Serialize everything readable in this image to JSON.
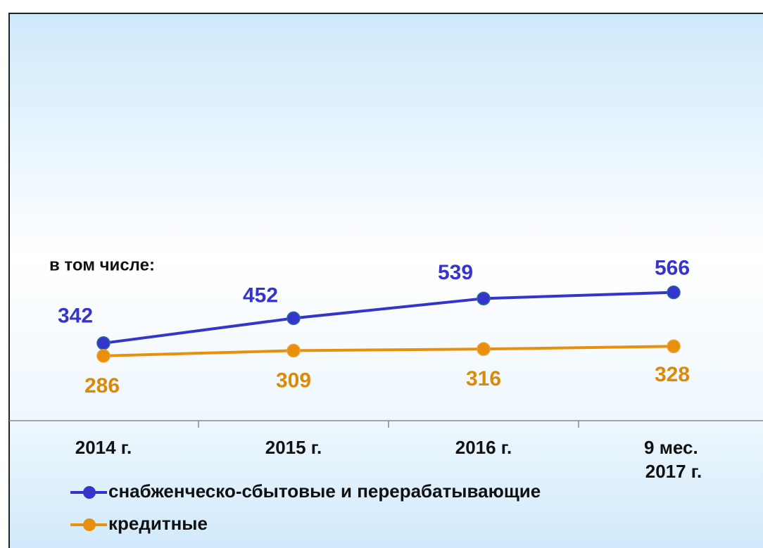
{
  "chart_data": {
    "type": "line",
    "annotations": [
      "в том числе:"
    ],
    "categories": [
      "2014 г.",
      "2015 г.",
      "2016 г.",
      "9 мес. 2017 г."
    ],
    "series": [
      {
        "name": "снабженческо-сбытовые и перерабатывающие",
        "color": "#3535cc",
        "values": [
          342,
          452,
          539,
          566
        ]
      },
      {
        "name": "кредитные",
        "color": "#e8900c",
        "values": [
          286,
          309,
          316,
          328
        ]
      }
    ],
    "ylim": [
      0,
      1800
    ],
    "grid": false,
    "legend": "bottom-left"
  }
}
